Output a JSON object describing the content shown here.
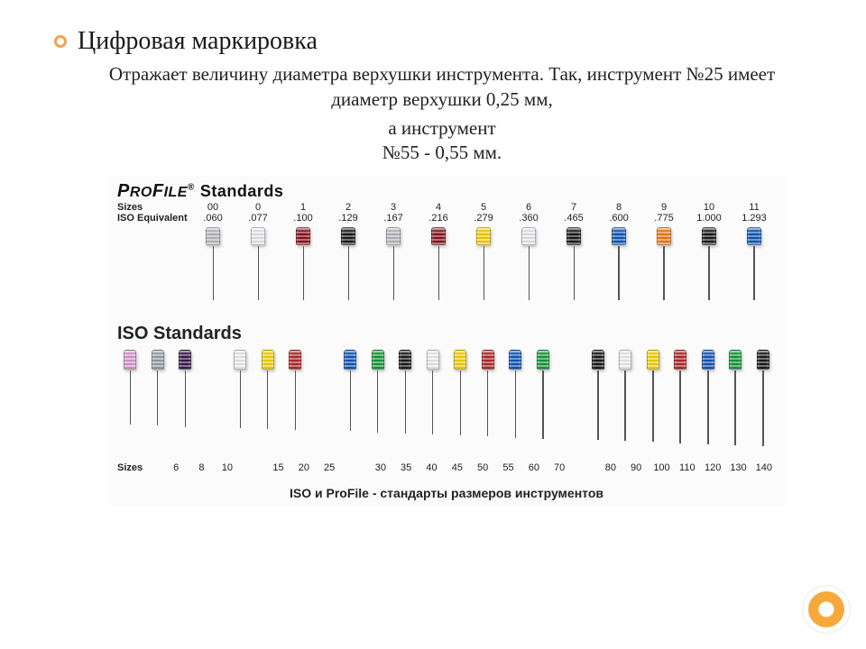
{
  "title": "Цифровая маркировка",
  "para1": "Отражает величину диаметра верхушки инструмента. Так, инструмент №25 имеет диаметр верхушки 0,25 мм,",
  "para2a": "а инструмент",
  "para2b": "№55 - 0,55 мм.",
  "figure": {
    "profile": {
      "brand_html": "PROFILE",
      "brand_suffix": "Standards",
      "row1_label": "Sizes",
      "row2_label": "ISO Equivalent",
      "items": [
        {
          "size": "00",
          "iso": ".060",
          "color": "#b8b8c0"
        },
        {
          "size": "0",
          "iso": ".077",
          "color": "#e8e8ef"
        },
        {
          "size": "1",
          "iso": ".100",
          "color": "#8a1020"
        },
        {
          "size": "2",
          "iso": ".129",
          "color": "#1a1a1a"
        },
        {
          "size": "3",
          "iso": ".167",
          "color": "#b8b8c0"
        },
        {
          "size": "4",
          "iso": ".216",
          "color": "#8a1020"
        },
        {
          "size": "5",
          "iso": ".279",
          "color": "#f4d20b"
        },
        {
          "size": "6",
          "iso": ".360",
          "color": "#e8e8ef"
        },
        {
          "size": "7",
          "iso": ".465",
          "color": "#1a1a1a"
        },
        {
          "size": "8",
          "iso": ".600",
          "color": "#1256b8"
        },
        {
          "size": "9",
          "iso": ".775",
          "color": "#f07a1a"
        },
        {
          "size": "10",
          "iso": "1.000",
          "color": "#1a1a1a"
        },
        {
          "size": "11",
          "iso": "1.293",
          "color": "#1256b8"
        }
      ],
      "handle_w": 16,
      "handle_h": 20,
      "shaft_h": 60
    },
    "iso": {
      "title": "ISO Standards",
      "row_label": "Sizes",
      "items": [
        {
          "size": "6",
          "color": "#d59ad0",
          "col": 1,
          "gap": 0
        },
        {
          "size": "8",
          "color": "#9aa0a6",
          "col": 2,
          "gap": 0
        },
        {
          "size": "10",
          "color": "#3a1a4a",
          "col": 3,
          "gap": 1
        },
        {
          "size": "15",
          "color": "#eeeeee",
          "col": 5,
          "gap": 0
        },
        {
          "size": "20",
          "color": "#f4d20b",
          "col": 6,
          "gap": 0
        },
        {
          "size": "25",
          "color": "#b02a2a",
          "col": 7,
          "gap": 1
        },
        {
          "size": "30",
          "color": "#1256b8",
          "col": 9,
          "gap": 0
        },
        {
          "size": "35",
          "color": "#179a3a",
          "col": 10,
          "gap": 0
        },
        {
          "size": "40",
          "color": "#1a1a1a",
          "col": 11,
          "gap": 0
        },
        {
          "size": "45",
          "color": "#eeeeee",
          "col": 12,
          "gap": 0
        },
        {
          "size": "50",
          "color": "#f4d20b",
          "col": 13,
          "gap": 0
        },
        {
          "size": "55",
          "color": "#b02a2a",
          "col": 14,
          "gap": 0
        },
        {
          "size": "60",
          "color": "#1256b8",
          "col": 15,
          "gap": 1
        },
        {
          "size": "70",
          "color": "#179a3a",
          "col": 16,
          "gap": 1
        },
        {
          "size": "80",
          "color": "#1a1a1a",
          "col": 18,
          "gap": 0
        },
        {
          "size": "90",
          "color": "#eeeeee",
          "col": 19,
          "gap": 0
        },
        {
          "size": "100",
          "color": "#f4d20b",
          "col": 20,
          "gap": 0
        },
        {
          "size": "110",
          "color": "#b02a2a",
          "col": 21,
          "gap": 0
        },
        {
          "size": "120",
          "color": "#1256b8",
          "col": 22,
          "gap": 0
        },
        {
          "size": "130",
          "color": "#179a3a",
          "col": 23,
          "gap": 0
        },
        {
          "size": "140",
          "color": "#1a1a1a",
          "col": 24,
          "gap": 0
        }
      ],
      "handle_w": 14,
      "handle_h": 22,
      "shaft_h": 60
    },
    "caption": "ISO и ProFile - стандарты размеров инструментов"
  },
  "accent_color": "#f6a93b"
}
